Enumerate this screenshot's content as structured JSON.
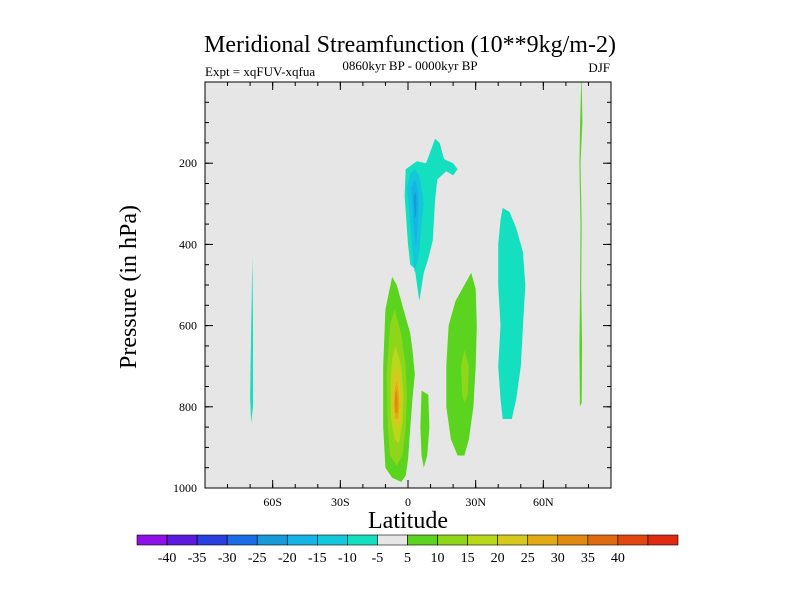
{
  "chart_data": {
    "type": "contour",
    "title": "Meridional Streamfunction (10**9kg/m-2)",
    "subtitle_left": "Expt = xqFUV-xqfua",
    "subtitle_center": "0860kyr BP - 0000kyr BP",
    "subtitle_right": "DJF",
    "xlabel": "Latitude",
    "ylabel": "Pressure (in hPa)",
    "xlim": [
      -90,
      90
    ],
    "ylim": [
      1000,
      0
    ],
    "x_ticks": [
      {
        "value": -60,
        "label": "60S"
      },
      {
        "value": -30,
        "label": "30S"
      },
      {
        "value": 0,
        "label": "0"
      },
      {
        "value": 30,
        "label": "30N"
      },
      {
        "value": 60,
        "label": "60N"
      }
    ],
    "y_ticks": [
      {
        "value": 200,
        "label": "200"
      },
      {
        "value": 400,
        "label": "400"
      },
      {
        "value": 600,
        "label": "600"
      },
      {
        "value": 800,
        "label": "800"
      },
      {
        "value": 1000,
        "label": "1000"
      }
    ],
    "colorbar": {
      "colors": [
        "#8f10e8",
        "#5d1adf",
        "#2a3fe0",
        "#1a6de6",
        "#169ad9",
        "#16b4e6",
        "#14c8dc",
        "#14e0c0",
        "#e6e6e6",
        "#5ad41e",
        "#8fd61a",
        "#b8d81a",
        "#d8c81e",
        "#e2aa14",
        "#e28a10",
        "#e06a10",
        "#e04810",
        "#e02a12"
      ],
      "labels": [
        "-40",
        "-35",
        "-30",
        "-25",
        "-20",
        "-15",
        "-10",
        "-5",
        "5",
        "10",
        "15",
        "20",
        "25",
        "30",
        "35",
        "40"
      ]
    },
    "regions": [
      {
        "name": "sh-narrow-band",
        "value": -5,
        "points": [
          [
            -69,
            430
          ],
          [
            -69.5,
            600
          ],
          [
            -70,
            780
          ],
          [
            -69.5,
            840
          ],
          [
            -68.7,
            800
          ],
          [
            -68.7,
            600
          ]
        ]
      },
      {
        "name": "upper-cell-outer",
        "value": -5,
        "points": [
          [
            -1,
            215
          ],
          [
            4,
            195
          ],
          [
            8,
            200
          ],
          [
            10,
            170
          ],
          [
            12,
            140
          ],
          [
            14,
            150
          ],
          [
            16,
            190
          ],
          [
            20,
            200
          ],
          [
            22,
            215
          ],
          [
            20,
            230
          ],
          [
            17,
            220
          ],
          [
            13,
            240
          ],
          [
            12,
            290
          ],
          [
            11,
            390
          ],
          [
            9,
            435
          ],
          [
            7,
            470
          ],
          [
            5,
            540
          ],
          [
            3,
            460
          ],
          [
            1,
            450
          ],
          [
            0,
            400
          ],
          [
            -1.5,
            280
          ]
        ]
      },
      {
        "name": "upper-cell-mid",
        "value": -10,
        "points": [
          [
            -0.5,
            260
          ],
          [
            1,
            225
          ],
          [
            3,
            215
          ],
          [
            5,
            230
          ],
          [
            6,
            260
          ],
          [
            7,
            300
          ],
          [
            6,
            350
          ],
          [
            5,
            420
          ],
          [
            3,
            470
          ],
          [
            2,
            420
          ],
          [
            1,
            350
          ]
        ]
      },
      {
        "name": "upper-cell-inner",
        "value": -15,
        "points": [
          [
            1.5,
            260
          ],
          [
            3,
            240
          ],
          [
            4.2,
            260
          ],
          [
            4.8,
            300
          ],
          [
            4.2,
            360
          ],
          [
            3.5,
            410
          ],
          [
            2.8,
            370
          ],
          [
            2,
            320
          ]
        ]
      },
      {
        "name": "upper-cell-core",
        "value": -20,
        "points": [
          [
            2.5,
            280
          ],
          [
            3.4,
            270
          ],
          [
            3.8,
            300
          ],
          [
            3.5,
            330
          ],
          [
            3,
            335
          ],
          [
            2.7,
            305
          ]
        ]
      },
      {
        "name": "nh-midlat-cell",
        "value": -5,
        "points": [
          [
            42,
            310
          ],
          [
            45,
            320
          ],
          [
            48,
            360
          ],
          [
            51,
            420
          ],
          [
            52,
            500
          ],
          [
            51,
            600
          ],
          [
            50,
            700
          ],
          [
            48,
            780
          ],
          [
            46,
            830
          ],
          [
            42,
            830
          ],
          [
            41,
            780
          ],
          [
            40,
            700
          ],
          [
            41,
            600
          ],
          [
            40,
            500
          ],
          [
            40,
            400
          ],
          [
            41,
            340
          ]
        ]
      },
      {
        "name": "nh-highlat-band",
        "value": 5,
        "points": [
          [
            77,
            0
          ],
          [
            77.3,
            100
          ],
          [
            76.5,
            200
          ],
          [
            77,
            350
          ],
          [
            76.8,
            500
          ],
          [
            77.2,
            650
          ],
          [
            77,
            790
          ],
          [
            76.2,
            800
          ],
          [
            76,
            650
          ],
          [
            76.3,
            500
          ],
          [
            76.5,
            350
          ],
          [
            76,
            200
          ],
          [
            76.3,
            100
          ],
          [
            76.8,
            0
          ]
        ]
      },
      {
        "name": "nh-subtrop-cell-5",
        "value": 5,
        "points": [
          [
            28,
            470
          ],
          [
            30,
            510
          ],
          [
            30.5,
            600
          ],
          [
            30,
            700
          ],
          [
            29,
            800
          ],
          [
            27,
            880
          ],
          [
            25,
            920
          ],
          [
            22,
            920
          ],
          [
            19,
            880
          ],
          [
            17,
            800
          ],
          [
            17,
            700
          ],
          [
            18,
            600
          ],
          [
            21,
            540
          ],
          [
            25,
            500
          ]
        ]
      },
      {
        "name": "nh-subtrop-cell-10",
        "value": 10,
        "points": [
          [
            25,
            660
          ],
          [
            27,
            700
          ],
          [
            26.5,
            770
          ],
          [
            25,
            790
          ],
          [
            24,
            770
          ],
          [
            23.5,
            700
          ]
        ]
      },
      {
        "name": "eq-lower-5",
        "value": 5,
        "points": [
          [
            -7,
            480
          ],
          [
            -5,
            500
          ],
          [
            -2,
            560
          ],
          [
            1,
            620
          ],
          [
            2,
            660
          ],
          [
            3,
            720
          ],
          [
            2,
            780
          ],
          [
            1,
            850
          ],
          [
            0,
            930
          ],
          [
            -1,
            970
          ],
          [
            -3,
            985
          ],
          [
            -7,
            975
          ],
          [
            -10,
            950
          ],
          [
            -11,
            850
          ],
          [
            -11,
            700
          ],
          [
            -10,
            560
          ]
        ]
      },
      {
        "name": "eq-lower-10",
        "value": 10,
        "points": [
          [
            -6,
            560
          ],
          [
            -3,
            620
          ],
          [
            -1,
            700
          ],
          [
            -0.5,
            780
          ],
          [
            -1,
            850
          ],
          [
            -2.5,
            920
          ],
          [
            -5,
            945
          ],
          [
            -8,
            920
          ],
          [
            -9,
            850
          ],
          [
            -9.5,
            720
          ],
          [
            -8,
            600
          ]
        ]
      },
      {
        "name": "eq-lower-15",
        "value": 15,
        "points": [
          [
            -5.5,
            650
          ],
          [
            -3,
            700
          ],
          [
            -2,
            770
          ],
          [
            -2.5,
            840
          ],
          [
            -4,
            890
          ],
          [
            -6,
            880
          ],
          [
            -7.5,
            830
          ],
          [
            -7.8,
            740
          ],
          [
            -7,
            680
          ]
        ]
      },
      {
        "name": "eq-lower-20",
        "value": 20,
        "points": [
          [
            -5,
            700
          ],
          [
            -3.5,
            740
          ],
          [
            -3,
            790
          ],
          [
            -3.5,
            840
          ],
          [
            -5,
            860
          ],
          [
            -6.8,
            820
          ],
          [
            -7,
            760
          ],
          [
            -6.5,
            720
          ]
        ]
      },
      {
        "name": "eq-lower-25",
        "value": 25,
        "points": [
          [
            -5,
            735
          ],
          [
            -4,
            770
          ],
          [
            -3.8,
            800
          ],
          [
            -4.5,
            830
          ],
          [
            -5.5,
            830
          ],
          [
            -6.3,
            800
          ],
          [
            -6,
            760
          ]
        ]
      },
      {
        "name": "eq-lower-30",
        "value": 30,
        "points": [
          [
            -5,
            760
          ],
          [
            -4.5,
            790
          ],
          [
            -4.8,
            815
          ],
          [
            -5.6,
            815
          ],
          [
            -5.9,
            790
          ],
          [
            -5.6,
            765
          ]
        ]
      },
      {
        "name": "eq-small-patch",
        "value": 5,
        "points": [
          [
            6,
            760
          ],
          [
            9,
            770
          ],
          [
            9.5,
            850
          ],
          [
            8.5,
            920
          ],
          [
            7,
            950
          ],
          [
            6,
            920
          ],
          [
            5.5,
            850
          ]
        ]
      }
    ]
  }
}
